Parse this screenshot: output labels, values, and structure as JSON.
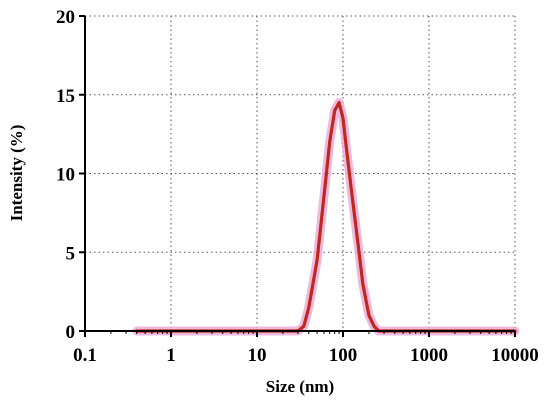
{
  "chart_data": {
    "type": "line",
    "title": "",
    "xlabel": "Size (nm)",
    "ylabel": "Intensity (%)",
    "xscale": "log",
    "xlim": [
      0.1,
      10000
    ],
    "ylim": [
      0,
      20
    ],
    "x_ticks": [
      0.1,
      1,
      10,
      100,
      1000,
      10000
    ],
    "x_tick_labels": [
      "0.1",
      "1",
      "10",
      "100",
      "1000",
      "10000"
    ],
    "y_ticks": [
      0,
      5,
      10,
      15,
      20
    ],
    "y_tick_labels": [
      "0",
      "5",
      "10",
      "15",
      "20"
    ],
    "grid": true,
    "legend": "none",
    "series": [
      {
        "color": "#c0281e",
        "band_color": "#e9a8d6",
        "x": [
          0.4,
          1,
          5,
          10,
          20,
          30,
          35,
          40,
          50,
          60,
          70,
          80,
          90,
          100,
          110,
          125,
          150,
          170,
          200,
          230,
          260,
          300,
          500,
          1000,
          5000,
          10000
        ],
        "y": [
          0,
          0,
          0,
          0,
          0,
          0,
          0.3,
          1.5,
          4.5,
          8.5,
          12.0,
          14.0,
          14.5,
          13.5,
          11.5,
          9.0,
          5.5,
          3.0,
          1.0,
          0.3,
          0,
          0,
          0,
          0,
          0,
          0
        ]
      }
    ]
  }
}
